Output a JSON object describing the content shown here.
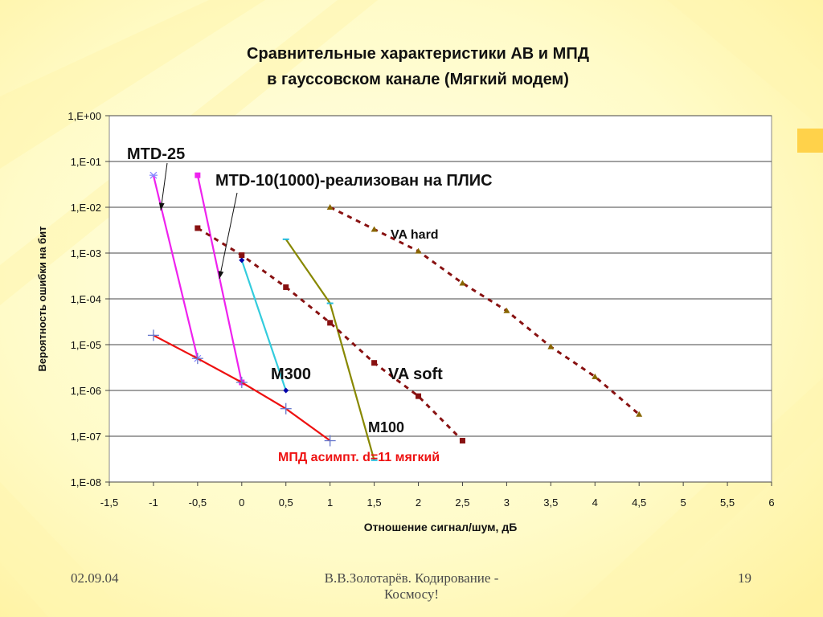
{
  "slide": {
    "title_line1": "Сравнительные характеристики АВ  и МПД",
    "title_line2": "в  гауссовском  канале  (Мягкий  модем)",
    "footer_date": "02.09.04",
    "footer_author_line1": "В.В.Золотарёв.  Кодирование -",
    "footer_author_line2": "Космосу!",
    "page_number": "19"
  },
  "chart_data": {
    "type": "line",
    "title": "",
    "xlabel": "Отношение сигнал/шум,  дБ",
    "ylabel": "Вероятность ошибки на бит",
    "xlim": [
      -1.5,
      6
    ],
    "ylim_log10": [
      -8,
      0
    ],
    "y_scale": "log",
    "grid": "horizontal",
    "x_ticks": [
      -1.5,
      -1,
      -0.5,
      0,
      0.5,
      1,
      1.5,
      2,
      2.5,
      3,
      3.5,
      4,
      4.5,
      5,
      5.5,
      6
    ],
    "x_tick_labels": [
      "-1,5",
      "-1",
      "-0,5",
      "0",
      "0,5",
      "1",
      "1,5",
      "2",
      "2,5",
      "3",
      "3,5",
      "4",
      "4,5",
      "5",
      "5,5",
      "6"
    ],
    "y_ticks_log10": [
      0,
      -1,
      -2,
      -3,
      -4,
      -5,
      -6,
      -7,
      -8
    ],
    "y_tick_labels": [
      "1,E+00",
      "1,E-01",
      "1,E-02",
      "1,E-03",
      "1,E-04",
      "1,E-05",
      "1,E-06",
      "1,E-07",
      "1,E-08"
    ],
    "series": [
      {
        "id": "mtd25",
        "color": "#ee22ee",
        "style": "solid",
        "marker": "star",
        "x": [
          -1.0,
          -0.5
        ],
        "y": [
          0.05,
          5e-06
        ]
      },
      {
        "id": "mtd10",
        "color": "#ee22ee",
        "style": "solid",
        "marker": "square",
        "x": [
          -0.5,
          0.0
        ],
        "y": [
          0.05,
          1.5e-06
        ]
      },
      {
        "id": "m300",
        "color": "#33ccdd",
        "style": "solid",
        "marker": "diamond",
        "x": [
          0.0,
          0.5
        ],
        "y": [
          0.0007,
          1e-06
        ]
      },
      {
        "id": "m100",
        "color": "#888800",
        "style": "solid",
        "marker": "tick",
        "x": [
          0.5,
          1.0,
          1.5
        ],
        "y": [
          0.002,
          8e-05,
          3e-08
        ]
      },
      {
        "id": "mpd_asympt",
        "color": "#ee1111",
        "style": "solid",
        "marker": "plus",
        "x": [
          -1.0,
          -0.5,
          0.0,
          0.5,
          1.0
        ],
        "y": [
          1.6e-05,
          5e-06,
          1.5e-06,
          4e-07,
          8e-08
        ]
      },
      {
        "id": "va_soft",
        "color": "#881111",
        "style": "dashed",
        "marker": "square",
        "x": [
          -0.5,
          0.0,
          0.5,
          1.0,
          1.5,
          2.0,
          2.5
        ],
        "y": [
          0.0035,
          0.0009,
          0.00018,
          3e-05,
          4e-06,
          7.5e-07,
          8e-08
        ]
      },
      {
        "id": "va_hard",
        "color": "#881111",
        "style": "dashed",
        "marker": "triangle",
        "x": [
          1.0,
          1.5,
          2.0,
          2.5,
          3.0,
          3.5,
          4.0,
          4.5
        ],
        "y": [
          0.01,
          0.0033,
          0.0011,
          0.00022,
          5.5e-05,
          9e-06,
          2e-06,
          3e-07
        ]
      }
    ],
    "annotations": [
      {
        "text": "МТD-25",
        "color": "#111111",
        "size": 20
      },
      {
        "text": "МТD-10(1000)-реализован на ПЛИС",
        "color": "#111111",
        "size": 20
      },
      {
        "text": "VA hard",
        "color": "#111111",
        "size": 16
      },
      {
        "text": "M300",
        "color": "#111111",
        "size": 20
      },
      {
        "text": "VA soft",
        "color": "#111111",
        "size": 20
      },
      {
        "text": "M100",
        "color": "#111111",
        "size": 18
      },
      {
        "text": "МПД асимпт. d=11 мягкий",
        "color": "#ee1111",
        "size": 16
      }
    ]
  }
}
